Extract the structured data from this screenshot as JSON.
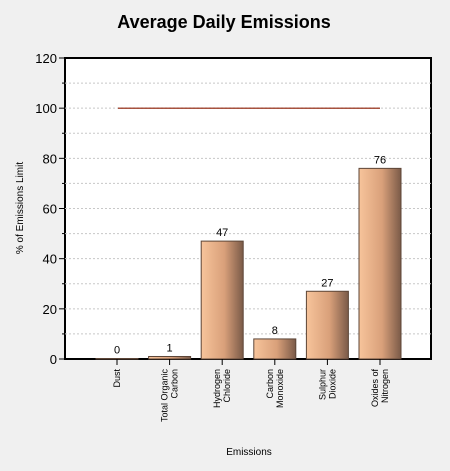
{
  "chart_data": {
    "type": "bar",
    "title": "Average Daily Emissions",
    "xlabel": "Emissions",
    "ylabel": "% of Emissions Limit",
    "ylim": [
      0,
      120
    ],
    "yticks": [
      0,
      20,
      40,
      60,
      80,
      100,
      120
    ],
    "categories": [
      [
        "Dust"
      ],
      [
        "Total Organic",
        "Carbon"
      ],
      [
        "Hydrogen",
        "Chloride"
      ],
      [
        "Carbon",
        "Monoxide"
      ],
      [
        "Sulphur",
        "Dioxide"
      ],
      [
        "Oxides of",
        "Nitrogen"
      ]
    ],
    "values": [
      0,
      1,
      47,
      8,
      27,
      76
    ],
    "data_labels": [
      "0",
      "1",
      "47",
      "8",
      "27",
      "76"
    ],
    "reference_line": {
      "value": 100
    },
    "grid": true,
    "legend": "none",
    "colors": {
      "background": "#f0f0f0",
      "plot_background": "#ffffff",
      "bar_light": "#f7c49b",
      "bar_mid": "#d9a07a",
      "bar_dark": "#7a5a48",
      "reference_line": "#8b1a00",
      "grid": "#c8c8c8"
    }
  }
}
